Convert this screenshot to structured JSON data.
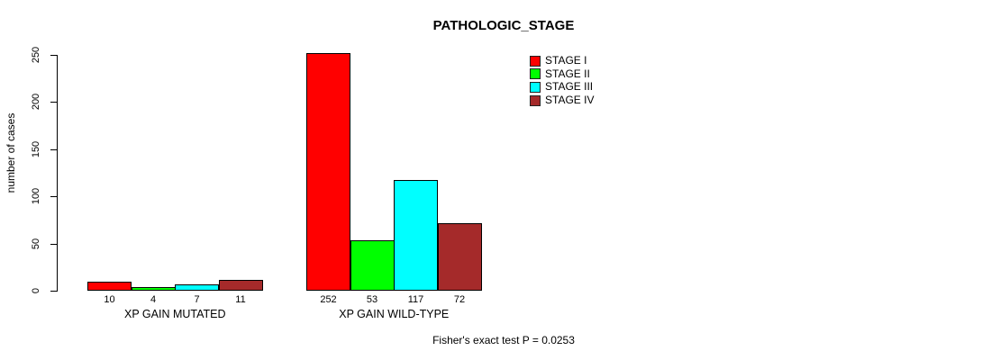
{
  "chart_data": {
    "type": "bar",
    "title": "PATHOLOGIC_STAGE",
    "ylabel": "number of cases",
    "xlabel": "",
    "ylim": [
      0,
      250
    ],
    "yticks": [
      "0",
      "50",
      "100",
      "150",
      "200",
      "250"
    ],
    "categories": [
      "XP GAIN MUTATED",
      "XP GAIN WILD-TYPE"
    ],
    "series": [
      {
        "name": "STAGE I",
        "color": "#ff0000",
        "values": [
          10,
          252
        ]
      },
      {
        "name": "STAGE II",
        "color": "#00ff00",
        "values": [
          4,
          53
        ]
      },
      {
        "name": "STAGE III",
        "color": "#00ffff",
        "values": [
          7,
          117
        ]
      },
      {
        "name": "STAGE IV",
        "color": "#a52a2a",
        "values": [
          11,
          72
        ]
      }
    ],
    "bar_value_labels": [
      [
        "10",
        "4",
        "7",
        "11"
      ],
      [
        "252",
        "53",
        "117",
        "72"
      ]
    ],
    "legend_position": "top-right",
    "grid": false,
    "annotation": "Fisher's exact test P = 0.0253"
  }
}
